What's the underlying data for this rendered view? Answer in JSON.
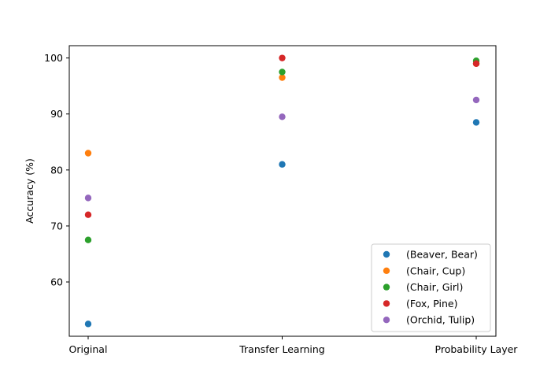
{
  "chart_data": {
    "type": "scatter",
    "title": "",
    "xlabel": "",
    "ylabel": "Accuracy (%)",
    "categories": [
      "Original",
      "Transfer Learning",
      "Probability Layer"
    ],
    "ylim": [
      50.3,
      102.2
    ],
    "yticks": [
      60,
      70,
      80,
      90,
      100
    ],
    "grid": false,
    "legend_position": "lower-right",
    "series": [
      {
        "name": "(Beaver, Bear)",
        "color": "#1f77b4",
        "values": [
          52.5,
          81.0,
          88.5
        ]
      },
      {
        "name": "(Chair, Cup)",
        "color": "#ff7f0e",
        "values": [
          83.0,
          96.5,
          99.0
        ]
      },
      {
        "name": "(Chair, Girl)",
        "color": "#2ca02c",
        "values": [
          67.5,
          97.5,
          99.5
        ]
      },
      {
        "name": "(Fox, Pine)",
        "color": "#d62728",
        "values": [
          72.0,
          100.0,
          99.0
        ]
      },
      {
        "name": "(Orchid, Tulip)",
        "color": "#9467bd",
        "values": [
          75.0,
          89.5,
          92.5
        ]
      }
    ]
  }
}
